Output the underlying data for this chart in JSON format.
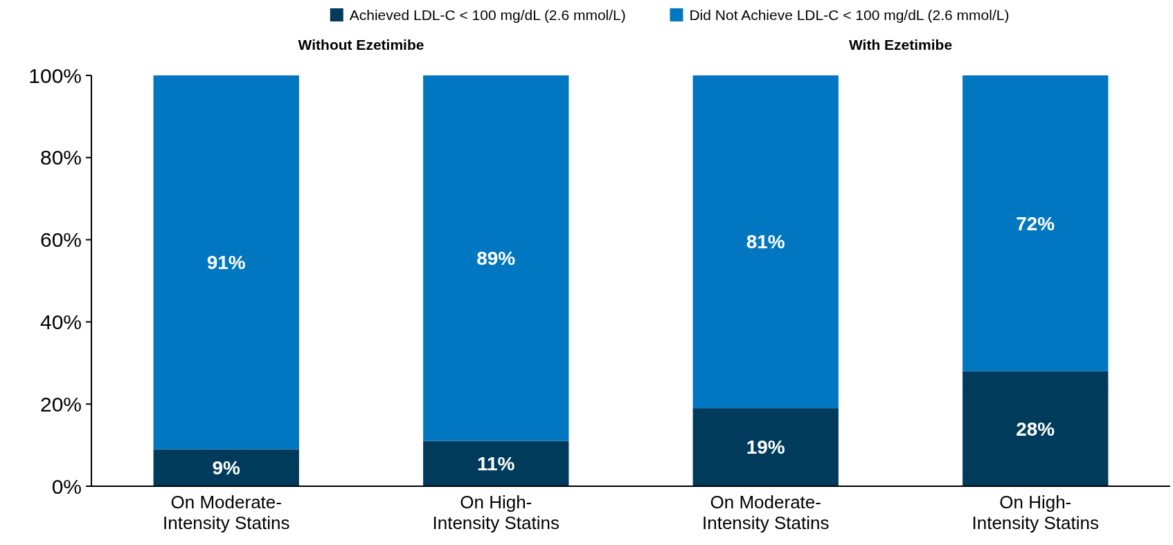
{
  "chart_data": {
    "type": "bar",
    "stacked": true,
    "categories": [
      "On Moderate-Intensity Statins",
      "On High-Intensity Statins",
      "On Moderate-Intensity Statins",
      "On High-Intensity Statins"
    ],
    "series": [
      {
        "name": "Achieved LDL-C < 100 mg/dL (2.6 mmol/L)",
        "color": "#003b5c",
        "values": [
          9,
          11,
          19,
          28
        ],
        "value_labels": [
          "9%",
          "11%",
          "19%",
          "28%"
        ]
      },
      {
        "name": "Did Not Achieve LDL-C < 100 mg/dL (2.6 mmol/L)",
        "color": "#0077c0",
        "values": [
          91,
          89,
          81,
          72
        ],
        "value_labels": [
          "91%",
          "89%",
          "81%",
          "72%"
        ]
      }
    ],
    "annotations": [
      "Without Ezetimibe",
      "With Ezetimibe"
    ],
    "ylim": [
      0,
      100
    ],
    "yticks": [
      {
        "value": 0,
        "label": "0%"
      },
      {
        "value": 20,
        "label": "20%"
      },
      {
        "value": 40,
        "label": "40%"
      },
      {
        "value": 60,
        "label": "60%"
      },
      {
        "value": 80,
        "label": "80%"
      },
      {
        "value": 100,
        "label": "100%"
      }
    ],
    "legend": "top",
    "grid": false
  }
}
